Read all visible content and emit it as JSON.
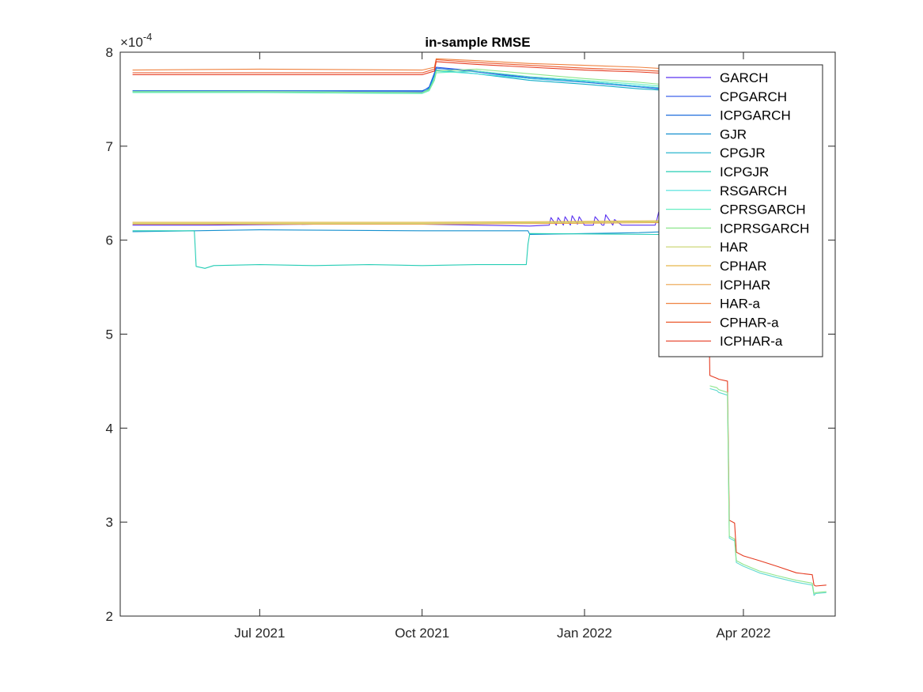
{
  "chart_data": {
    "type": "line",
    "title": "in-sample RMSE",
    "xlabel": "",
    "ylabel": "",
    "y_exponent_label": "×10",
    "y_exponent_power": "-4",
    "ylim": [
      2,
      8
    ],
    "yticks": [
      2,
      3,
      4,
      5,
      6,
      7,
      8
    ],
    "xlim": [
      "2021-04-13",
      "2022-05-23"
    ],
    "xticks": [
      {
        "date": "2021-07-01",
        "label": "Jul 2021"
      },
      {
        "date": "2021-10-01",
        "label": "Oct 2021"
      },
      {
        "date": "2022-01-01",
        "label": "Jan 2022"
      },
      {
        "date": "2022-04-01",
        "label": "Apr 2022"
      }
    ],
    "grid": false,
    "legend_position": "top-right",
    "series": [
      {
        "name": "GARCH",
        "color": "#5a32f0",
        "x": [
          "2021-04-20",
          "2021-06-01",
          "2021-08-01",
          "2021-10-01",
          "2021-12-01",
          "2021-12-12",
          "2021-12-13",
          "2021-12-16",
          "2021-12-17",
          "2021-12-20",
          "2021-12-21",
          "2021-12-24",
          "2021-12-25",
          "2021-12-28",
          "2021-12-29",
          "2022-01-01",
          "2022-01-06",
          "2022-01-07",
          "2022-01-11",
          "2022-01-12",
          "2022-01-13",
          "2022-01-17",
          "2022-01-18",
          "2022-01-22",
          "2022-01-23",
          "2022-02-10",
          "2022-02-11",
          "2022-02-12",
          "2022-02-13",
          "2022-03-01",
          "2022-03-10"
        ],
        "y": [
          6.16,
          6.16,
          6.17,
          6.17,
          6.15,
          6.16,
          6.24,
          6.16,
          6.24,
          6.16,
          6.25,
          6.16,
          6.26,
          6.17,
          6.25,
          6.16,
          6.16,
          6.25,
          6.16,
          6.16,
          6.27,
          6.16,
          6.22,
          6.16,
          6.16,
          6.16,
          6.22,
          6.3,
          6.16,
          6.17,
          6.17
        ]
      },
      {
        "name": "CPGARCH",
        "color": "#2a52e8",
        "x": [
          "2021-04-20",
          "2021-07-01",
          "2021-10-01",
          "2021-10-05",
          "2021-10-08",
          "2021-10-09",
          "2021-11-01",
          "2021-12-01",
          "2022-01-01",
          "2022-02-01",
          "2022-03-01",
          "2022-03-10"
        ],
        "y": [
          7.58,
          7.58,
          7.58,
          7.63,
          7.78,
          7.84,
          7.8,
          7.73,
          7.69,
          7.64,
          7.59,
          7.58
        ]
      },
      {
        "name": "ICPGARCH",
        "color": "#1f6fdc",
        "x": [
          "2021-04-20",
          "2021-07-01",
          "2021-10-01",
          "2021-10-05",
          "2021-10-08",
          "2021-10-09",
          "2021-11-01",
          "2021-12-01",
          "2022-01-01",
          "2022-02-01",
          "2022-03-01",
          "2022-03-10"
        ],
        "y": [
          7.59,
          7.59,
          7.59,
          7.62,
          7.76,
          7.83,
          7.79,
          7.72,
          7.68,
          7.63,
          7.58,
          7.58
        ]
      },
      {
        "name": "GJR",
        "color": "#1590cf",
        "x": [
          "2021-04-20",
          "2021-07-01",
          "2021-10-01",
          "2021-11-30",
          "2021-12-01",
          "2022-01-01",
          "2022-02-01",
          "2022-03-01",
          "2022-03-10"
        ],
        "y": [
          6.09,
          6.11,
          6.1,
          6.1,
          6.06,
          6.07,
          6.08,
          6.1,
          6.1
        ]
      },
      {
        "name": "CPGJR",
        "color": "#10adc8",
        "x": [
          "2021-04-20",
          "2021-07-01",
          "2021-10-01",
          "2021-10-05",
          "2021-10-08",
          "2021-10-09",
          "2021-11-01",
          "2021-12-01",
          "2022-01-01",
          "2022-02-01",
          "2022-03-01",
          "2022-03-10"
        ],
        "y": [
          7.58,
          7.58,
          7.57,
          7.61,
          7.75,
          7.81,
          7.77,
          7.7,
          7.66,
          7.61,
          7.58,
          7.57
        ]
      },
      {
        "name": "ICPGJR",
        "color": "#25cdb5",
        "x": [
          "2021-04-20",
          "2021-05-25",
          "2021-05-26",
          "2021-05-31",
          "2021-06-05",
          "2021-07-01",
          "2021-08-01",
          "2021-09-01",
          "2021-10-01",
          "2021-11-01",
          "2021-11-29",
          "2021-11-30",
          "2021-12-01",
          "2022-02-13",
          "2022-02-14",
          "2022-02-15",
          "2022-03-10"
        ],
        "y": [
          6.1,
          6.1,
          5.72,
          5.7,
          5.73,
          5.74,
          5.73,
          5.74,
          5.73,
          5.74,
          5.74,
          5.96,
          6.07,
          6.06,
          5.81,
          5.89,
          5.89
        ]
      },
      {
        "name": "RSGARCH",
        "color": "#4ce0dc",
        "x": [
          "2021-04-20",
          "2021-07-01",
          "2021-10-01",
          "2021-10-05",
          "2021-10-08",
          "2021-10-09",
          "2021-11-01",
          "2021-12-01",
          "2022-01-01",
          "2022-02-01",
          "2022-03-01",
          "2022-03-10"
        ],
        "y": [
          7.58,
          7.58,
          7.57,
          7.6,
          7.72,
          7.8,
          7.77,
          7.72,
          7.69,
          7.64,
          7.6,
          7.59
        ]
      },
      {
        "name": "CPRSGARCH",
        "color": "#66eec2",
        "x": [
          "2021-04-20",
          "2021-07-01",
          "2021-10-01",
          "2021-10-05",
          "2021-10-08",
          "2021-10-09",
          "2021-11-01",
          "2021-12-01",
          "2022-01-01",
          "2022-02-01",
          "2022-03-01",
          "2022-03-10"
        ],
        "y": [
          7.57,
          7.57,
          7.56,
          7.59,
          7.7,
          7.78,
          7.8,
          7.74,
          7.7,
          7.66,
          7.61,
          7.6
        ]
      },
      {
        "name": "ICPRSGARCH",
        "color": "#8ee68c",
        "x": [
          "2021-04-20",
          "2021-07-01",
          "2021-10-01",
          "2021-10-05",
          "2021-10-08",
          "2021-10-09",
          "2021-11-01",
          "2021-12-01",
          "2022-01-01",
          "2022-02-01",
          "2022-03-01",
          "2022-03-10"
        ],
        "y": [
          7.58,
          7.58,
          7.57,
          7.6,
          7.71,
          7.8,
          7.82,
          7.77,
          7.72,
          7.68,
          7.63,
          7.62
        ]
      },
      {
        "name": "HAR",
        "color": "#c9d46a",
        "x": [
          "2021-04-20",
          "2021-10-01",
          "2022-01-01",
          "2022-03-10"
        ],
        "y": [
          6.18,
          6.18,
          6.19,
          6.2
        ]
      },
      {
        "name": "CPHAR",
        "color": "#e6b84a",
        "x": [
          "2021-04-20",
          "2021-10-01",
          "2022-01-01",
          "2022-03-10"
        ],
        "y": [
          6.19,
          6.19,
          6.2,
          6.21
        ]
      },
      {
        "name": "ICPHAR",
        "color": "#eba44c",
        "x": [
          "2021-04-20",
          "2021-10-01",
          "2022-01-01",
          "2022-03-10"
        ],
        "y": [
          6.17,
          6.17,
          6.18,
          6.19
        ]
      },
      {
        "name": "HAR-a",
        "color": "#ef8240",
        "x": [
          "2021-04-20",
          "2021-07-01",
          "2021-10-01",
          "2021-10-08",
          "2021-10-09",
          "2021-11-01",
          "2021-12-01",
          "2022-01-01",
          "2022-02-01",
          "2022-03-01",
          "2022-03-10"
        ],
        "y": [
          7.81,
          7.82,
          7.81,
          7.84,
          7.93,
          7.91,
          7.88,
          7.86,
          7.84,
          7.81,
          7.8
        ]
      },
      {
        "name": "CPHAR-a",
        "color": "#eb5a2e",
        "x": [
          "2021-04-20",
          "2021-07-01",
          "2021-10-01",
          "2021-10-08",
          "2021-10-09",
          "2021-11-01",
          "2021-12-01",
          "2022-01-01",
          "2022-02-01",
          "2022-03-01",
          "2022-03-10"
        ],
        "y": [
          7.78,
          7.78,
          7.78,
          7.82,
          7.92,
          7.89,
          7.86,
          7.83,
          7.81,
          7.78,
          7.77
        ]
      },
      {
        "name": "ICPHAR-a",
        "color": "#e53a20",
        "x": [
          "2021-04-20",
          "2021-07-01",
          "2021-10-01",
          "2021-10-08",
          "2021-10-09",
          "2021-11-01",
          "2021-12-01",
          "2022-01-01",
          "2022-02-01",
          "2022-03-01",
          "2022-03-10",
          "2022-03-12",
          "2022-03-13",
          "2022-03-17",
          "2022-03-18",
          "2022-03-23",
          "2022-03-24",
          "2022-03-27",
          "2022-03-28",
          "2022-04-01",
          "2022-04-10",
          "2022-04-20",
          "2022-05-01",
          "2022-05-10",
          "2022-05-11",
          "2022-05-12",
          "2022-05-18"
        ],
        "y": [
          7.76,
          7.76,
          7.76,
          7.8,
          7.9,
          7.87,
          7.84,
          7.81,
          7.79,
          7.76,
          7.75,
          5.8,
          4.56,
          4.53,
          4.52,
          4.5,
          3.02,
          2.99,
          2.68,
          2.64,
          2.59,
          2.53,
          2.46,
          2.44,
          2.33,
          2.32,
          2.33
        ]
      },
      {
        "name": "",
        "color": "#5fd9d0",
        "x": [
          "2022-03-13",
          "2022-03-17",
          "2022-03-18",
          "2022-03-23",
          "2022-03-24",
          "2022-03-27",
          "2022-03-28",
          "2022-04-01",
          "2022-04-10",
          "2022-04-20",
          "2022-05-01",
          "2022-05-10",
          "2022-05-11",
          "2022-05-12",
          "2022-05-18"
        ],
        "y": [
          4.42,
          4.4,
          4.38,
          4.35,
          2.83,
          2.8,
          2.57,
          2.53,
          2.46,
          2.41,
          2.36,
          2.33,
          2.22,
          2.24,
          2.25
        ]
      },
      {
        "name": "",
        "color": "#8ee68c",
        "x": [
          "2022-03-13",
          "2022-03-17",
          "2022-03-18",
          "2022-03-23",
          "2022-03-24",
          "2022-03-27",
          "2022-03-28",
          "2022-04-01",
          "2022-04-10",
          "2022-04-20",
          "2022-05-01",
          "2022-05-10",
          "2022-05-11",
          "2022-05-12",
          "2022-05-18"
        ],
        "y": [
          4.45,
          4.43,
          4.41,
          4.38,
          2.85,
          2.82,
          2.59,
          2.55,
          2.48,
          2.43,
          2.38,
          2.35,
          2.24,
          2.25,
          2.26
        ]
      }
    ]
  }
}
